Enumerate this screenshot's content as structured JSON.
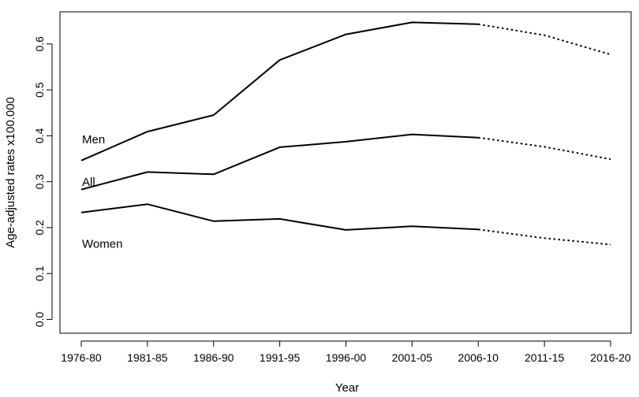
{
  "chart_data": {
    "type": "line",
    "title": "",
    "xlabel": "Year",
    "ylabel": "Age-adjusted rates  x100.000",
    "categories": [
      "1976-80",
      "1981-85",
      "1986-90",
      "1991-95",
      "1996-00",
      "2001-05",
      "2006-10",
      "2011-15",
      "2016-20"
    ],
    "ylim": [
      -0.03,
      0.67
    ],
    "yticks": [
      "0.0",
      "0.1",
      "0.2",
      "0.3",
      "0.4",
      "0.5",
      "0.6"
    ],
    "grid": false,
    "projection_starts_at": "2006-10",
    "series": [
      {
        "name": "Men",
        "values": [
          0.346,
          0.409,
          0.445,
          0.565,
          0.621,
          0.647,
          0.643,
          0.619,
          0.577
        ]
      },
      {
        "name": "All",
        "values": [
          0.283,
          0.321,
          0.316,
          0.375,
          0.387,
          0.403,
          0.396,
          0.376,
          0.349
        ]
      },
      {
        "name": "Women",
        "values": [
          0.233,
          0.251,
          0.214,
          0.219,
          0.195,
          0.203,
          0.196,
          0.177,
          0.163
        ]
      }
    ]
  }
}
